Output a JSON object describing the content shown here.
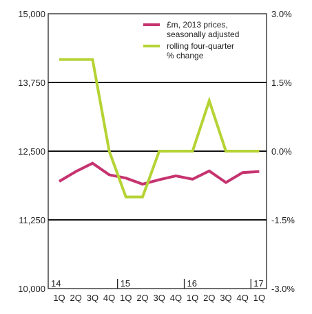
{
  "chart_data": {
    "type": "line",
    "title": "",
    "x_top_labels": [
      "14",
      "15",
      "16",
      "17"
    ],
    "x_quarter_labels": [
      "1Q",
      "2Q",
      "3Q",
      "4Q",
      "1Q",
      "2Q",
      "3Q",
      "4Q",
      "1Q",
      "2Q",
      "3Q",
      "4Q",
      "1Q"
    ],
    "y_left": {
      "ticks": [
        "10,000",
        "11,250",
        "12,500",
        "13,750",
        "15,000"
      ],
      "range": [
        10000,
        15000
      ]
    },
    "y_right": {
      "ticks": [
        "-3.0%",
        "-1.5%",
        "0.0%",
        "1.5%",
        "3.0%"
      ],
      "range": [
        -3.0,
        3.0
      ]
    },
    "grid": "horizontal",
    "legend_position": "top-right",
    "series": [
      {
        "name": "£m, 2013 prices, seasonally adjusted",
        "axis": "left",
        "color": "#c6336f",
        "values": [
          11950,
          12130,
          12280,
          12070,
          12010,
          11900,
          11980,
          12050,
          11990,
          12140,
          11930,
          12110,
          12130
        ]
      },
      {
        "name": "rolling four-quarter % change",
        "axis": "right",
        "color": "#b5d334",
        "values": [
          2.0,
          2.0,
          2.0,
          0.0,
          -1.0,
          -1.0,
          0.0,
          0.0,
          0.0,
          1.1,
          0.0,
          0.0,
          0.0
        ]
      }
    ]
  }
}
